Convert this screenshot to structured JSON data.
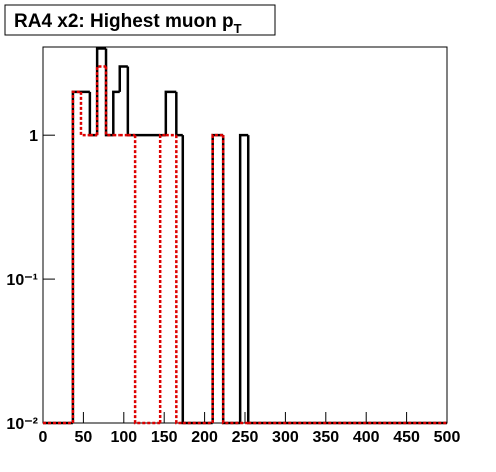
{
  "chart_data": {
    "type": "step-histogram",
    "title": "RA4 x2: Highest muon p",
    "title_subscript": "T",
    "bins": [
      0,
      37,
      47,
      58,
      67,
      78,
      87,
      95,
      105,
      114,
      145,
      152,
      165,
      173,
      210,
      223,
      244,
      254,
      500
    ],
    "series": [
      {
        "color": "#000000",
        "dashed": false,
        "values": [
          0,
          2,
          2,
          1,
          4,
          1,
          2,
          3,
          1,
          1,
          1,
          2,
          1,
          0,
          1,
          0,
          1,
          0
        ]
      },
      {
        "color": "#dd0000",
        "dashed": true,
        "values": [
          0,
          2,
          1,
          1,
          3,
          1,
          1,
          1,
          1,
          0,
          1,
          1,
          0,
          0,
          1,
          0,
          0,
          0
        ]
      }
    ],
    "xlim": [
      0,
      500
    ],
    "xticks": [
      0,
      50,
      100,
      150,
      200,
      250,
      300,
      350,
      400,
      450,
      500
    ],
    "ylim": [
      0.01,
      4.1
    ],
    "log_y": true,
    "yticks": [
      {
        "value": 0.01,
        "label": "10⁻²"
      },
      {
        "value": 0.1,
        "label": "10⁻¹"
      },
      1
    ]
  }
}
